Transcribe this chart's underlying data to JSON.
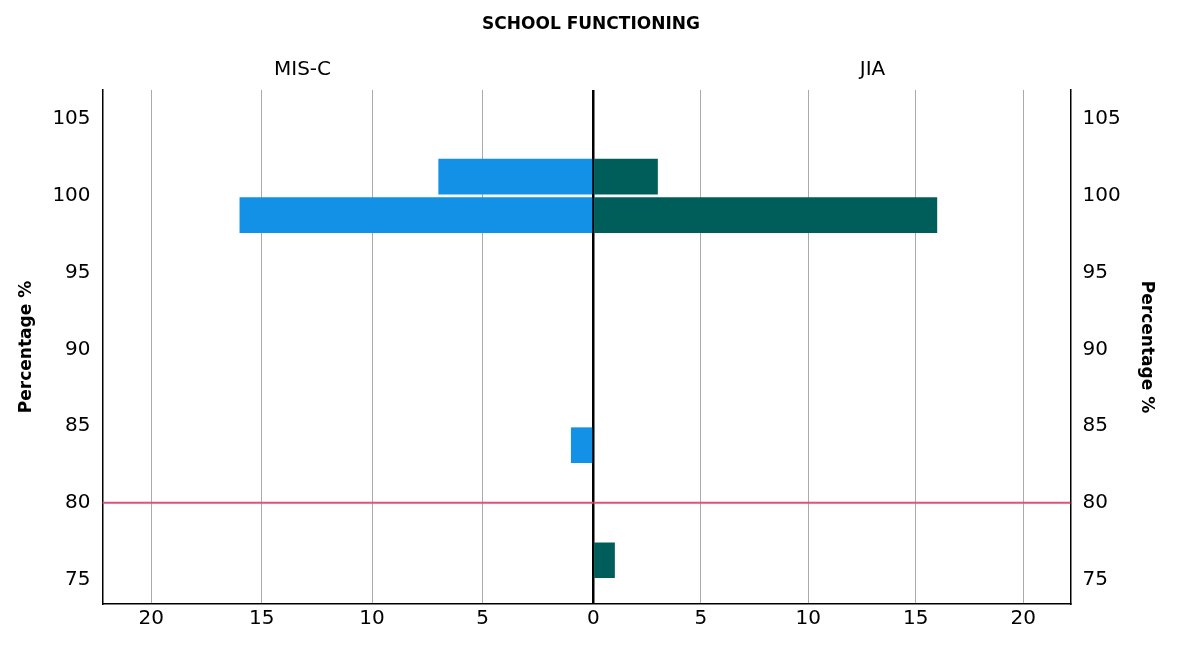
{
  "chart_data": [
    {
      "type": "histogram",
      "title": "SCHOOL FUNCTIONING",
      "subtitle": "MIS-C",
      "ylabel": "Percentage %",
      "orientation": "horizontal",
      "bins": [
        75,
        77.5,
        80,
        82.5,
        85,
        87.5,
        90,
        92.5,
        95,
        97.5,
        100,
        102.5
      ],
      "values": [
        0,
        0,
        0,
        1,
        0,
        0,
        0,
        0,
        0,
        16,
        7
      ],
      "color": "#1391e6",
      "xlim": [
        22.2,
        0
      ],
      "xticks": [
        {
          "value": 0,
          "label": null
        },
        5,
        10,
        15,
        20
      ],
      "ylim": [
        73.4,
        106.9
      ],
      "yticks": [
        75,
        80,
        85,
        90,
        95,
        100,
        105
      ],
      "grid": "x",
      "ref_lines": [
        {
          "axis": "y",
          "value": 80,
          "color": "#e0507a"
        }
      ]
    },
    {
      "type": "histogram",
      "title": "JIA",
      "ylabel": "Percentage %",
      "orientation": "horizontal",
      "bins": [
        75,
        77.5,
        80,
        82.5,
        85,
        87.5,
        90,
        92.5,
        95,
        97.5,
        100,
        102.5
      ],
      "values": [
        1,
        0,
        0,
        0,
        0,
        0,
        0,
        0,
        0,
        16,
        3
      ],
      "color": "#005e5a",
      "xlim": [
        0,
        22.2
      ],
      "xticks": [
        0,
        5,
        10,
        15,
        20
      ],
      "ylim": [
        73.4,
        106.9
      ],
      "yticks": [
        75,
        80,
        85,
        90,
        95,
        100,
        105
      ],
      "grid": "x",
      "ref_lines": [
        {
          "axis": "y",
          "value": 80,
          "color": "#e0507a"
        }
      ]
    }
  ]
}
